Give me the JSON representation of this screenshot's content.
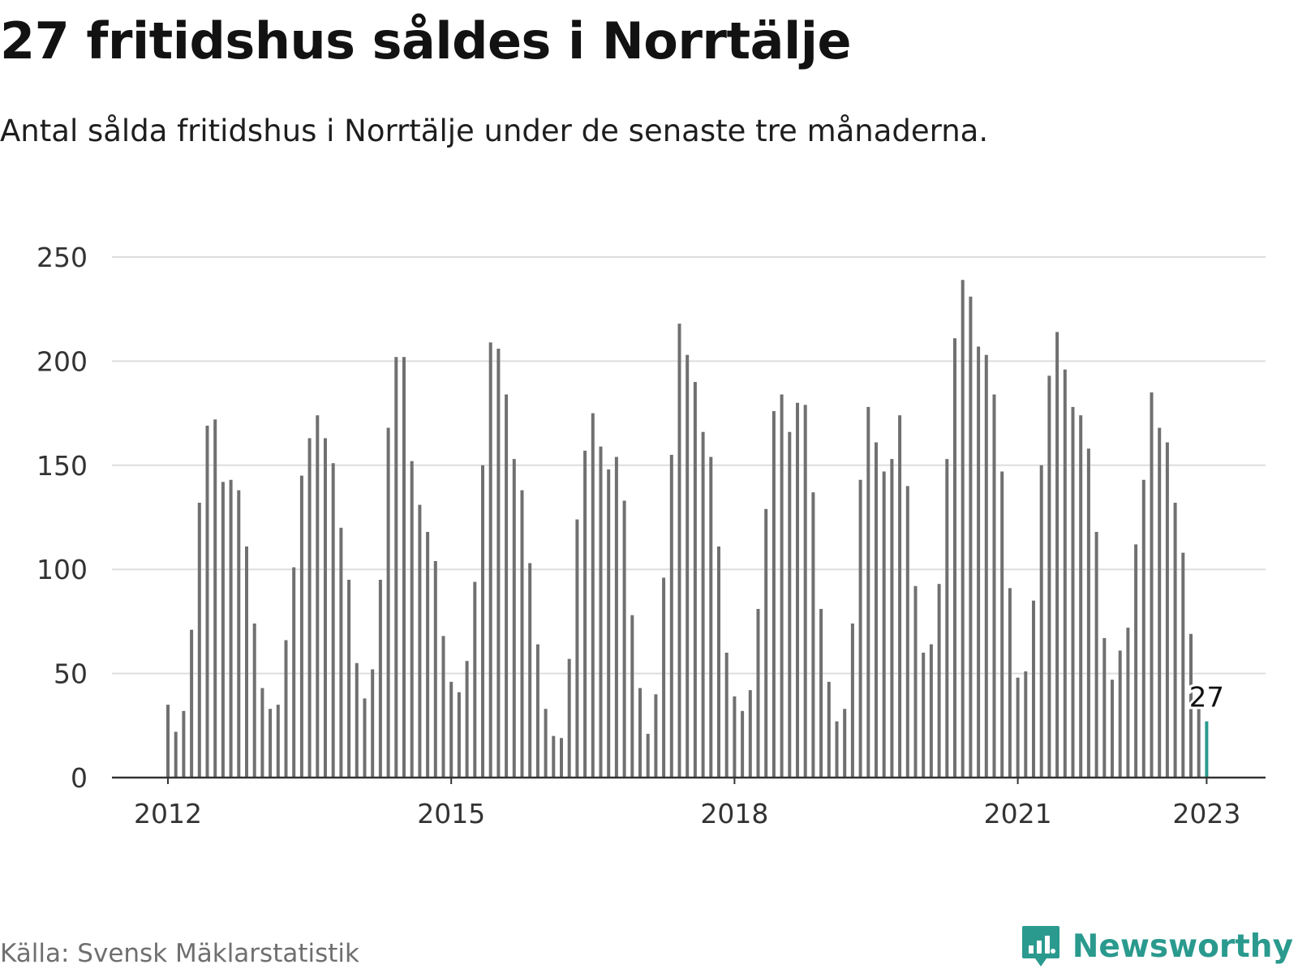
{
  "title": "27 fritidshus såldes i Norrtälje",
  "subtitle": "Antal sålda fritidshus i Norrtälje under de senaste tre månaderna.",
  "source": "Källa: Svensk Mäklarstatistik",
  "brand": "Newsworthy",
  "colors": {
    "bar": "#707070",
    "highlight": "#2a9a8e",
    "grid": "#dddddd",
    "axis": "#333333",
    "brand": "#2a9a8e"
  },
  "chart_data": {
    "type": "bar",
    "title": "27 fritidshus såldes i Norrtälje",
    "subtitle": "Antal sålda fritidshus i Norrtälje under de senaste tre månaderna.",
    "xlabel": "",
    "ylabel": "",
    "ylim": [
      0,
      250
    ],
    "y_ticks": [
      0,
      50,
      100,
      150,
      200,
      250
    ],
    "x_ticks": [
      "2012",
      "2015",
      "2018",
      "2021",
      "2023"
    ],
    "grid": true,
    "start": "2012-01",
    "highlight": {
      "label": "27",
      "value": 27,
      "period": "2023-01"
    },
    "values": [
      35,
      22,
      32,
      71,
      132,
      169,
      172,
      142,
      143,
      138,
      111,
      74,
      43,
      33,
      35,
      66,
      101,
      145,
      163,
      174,
      163,
      151,
      120,
      95,
      55,
      38,
      52,
      95,
      168,
      202,
      202,
      152,
      131,
      118,
      104,
      68,
      46,
      41,
      56,
      94,
      150,
      209,
      206,
      184,
      153,
      138,
      103,
      64,
      33,
      20,
      19,
      57,
      124,
      157,
      175,
      159,
      148,
      154,
      133,
      78,
      43,
      21,
      40,
      96,
      155,
      218,
      203,
      190,
      166,
      154,
      111,
      60,
      39,
      32,
      42,
      81,
      129,
      176,
      184,
      166,
      180,
      179,
      137,
      81,
      46,
      27,
      33,
      74,
      143,
      178,
      161,
      147,
      153,
      174,
      140,
      92,
      60,
      64,
      93,
      153,
      211,
      239,
      231,
      207,
      203,
      184,
      147,
      91,
      48,
      51,
      85,
      150,
      193,
      214,
      196,
      178,
      174,
      158,
      118,
      67,
      47,
      61,
      72,
      112,
      143,
      185,
      168,
      161,
      132,
      108,
      69,
      34,
      27
    ]
  }
}
